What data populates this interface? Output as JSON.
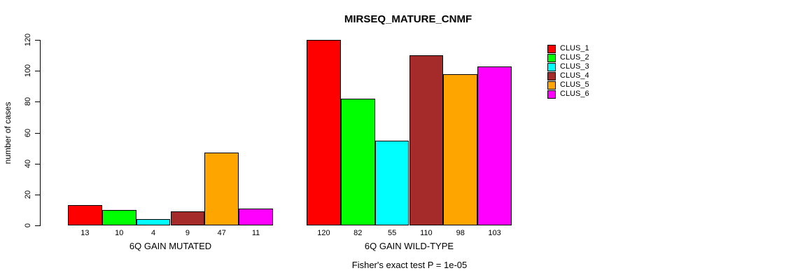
{
  "chart_data": {
    "type": "bar",
    "title": "MIRSEQ_MATURE_CNMF",
    "ylabel": "number of cases",
    "xlabel": "",
    "footnote": "Fisher's exact test P = 1e-05",
    "ylim": [
      0,
      120
    ],
    "yticks": [
      0,
      20,
      40,
      60,
      80,
      100,
      120
    ],
    "grid": false,
    "legend_position": "right",
    "legend": [
      "CLUS_1",
      "CLUS_2",
      "CLUS_3",
      "CLUS_4",
      "CLUS_5",
      "CLUS_6"
    ],
    "colors": [
      "#FF0000",
      "#00FF00",
      "#00FFFF",
      "#A52A2A",
      "#FFA500",
      "#FF00FF"
    ],
    "axis_color": "#000000",
    "groups": [
      {
        "label": "6Q GAIN MUTATED",
        "values": [
          13,
          10,
          4,
          9,
          47,
          11
        ]
      },
      {
        "label": "6Q GAIN WILD-TYPE",
        "values": [
          120,
          82,
          55,
          110,
          98,
          103
        ]
      }
    ]
  }
}
